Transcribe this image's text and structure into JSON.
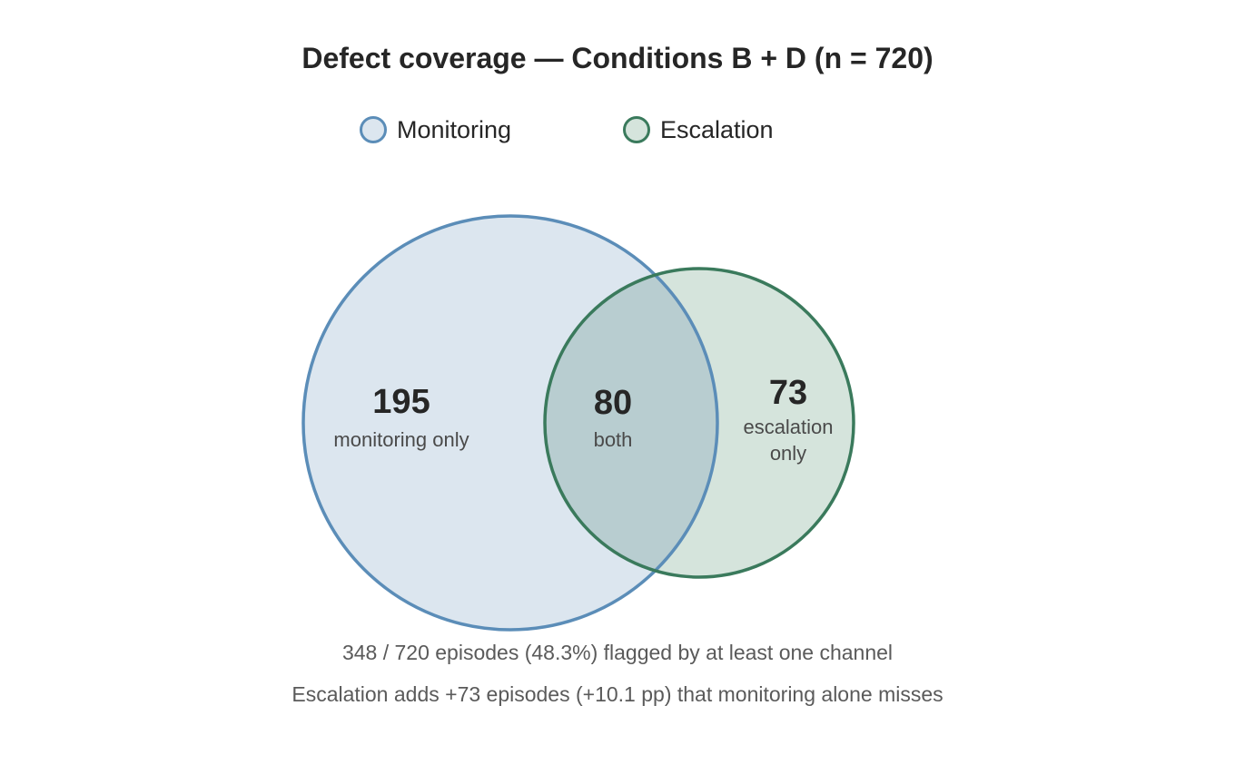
{
  "title": "Defect coverage — Conditions B + D (n = 720)",
  "legend": [
    {
      "label": "Monitoring",
      "stroke": "#5b8db8",
      "fill": "#dce6ef"
    },
    {
      "label": "Escalation",
      "stroke": "#3a7a5c",
      "fill": "#d5e4dc"
    }
  ],
  "venn": {
    "sets": [
      {
        "name": "Monitoring",
        "stroke": "#5b8db8",
        "fill": "#dce6ef"
      },
      {
        "name": "Escalation",
        "stroke": "#3a7a5c",
        "fill": "#d5e4dc"
      }
    ],
    "overlap_fill": "#b8cdd0",
    "regions": {
      "monitoring_only": {
        "count": "195",
        "label": "monitoring only"
      },
      "both": {
        "count": "80",
        "label": "both"
      },
      "escalation_only": {
        "count": "73",
        "label_line1": "escalation",
        "label_line2": "only"
      }
    }
  },
  "footnotes": [
    "348 / 720 episodes (48.3%) flagged by at least one channel",
    "Escalation adds +73 episodes (+10.1 pp) that monitoring alone misses"
  ]
}
